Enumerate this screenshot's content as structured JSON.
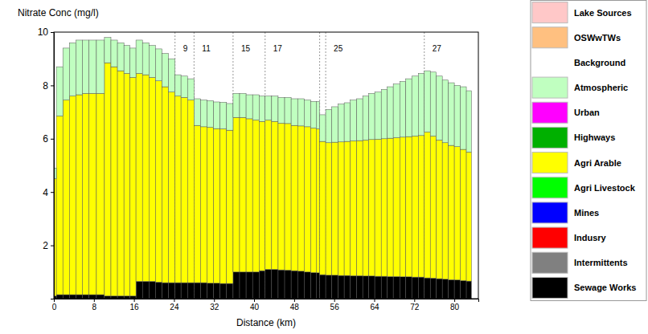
{
  "chart_data": {
    "type": "bar",
    "stacked": true,
    "legend": "right",
    "y_label": "Nitrate Conc (mg/l)",
    "x_label": "Distance (km)",
    "xlim": [
      0,
      84.8
    ],
    "xticks": [
      0,
      8,
      16,
      24,
      32,
      40,
      48,
      56,
      64,
      72,
      80
    ],
    "ylim": [
      0,
      10
    ],
    "yticks": [
      2,
      4,
      6,
      8,
      10
    ],
    "bins": [
      0,
      0.5,
      1.8,
      3.1,
      4.4,
      5.7,
      7.0,
      8.5,
      10.1,
      11.4,
      12.7,
      14.0,
      15.2,
      16.4,
      17.7,
      19.0,
      20.3,
      21.6,
      22.9,
      24.2,
      25.4,
      26.7,
      28.0,
      29.3,
      30.6,
      31.9,
      33.2,
      34.5,
      35.8,
      37.1,
      38.4,
      39.7,
      41.0,
      42.2,
      43.5,
      44.8,
      46.1,
      47.4,
      48.7,
      50.0,
      51.3,
      52.4,
      53.1,
      54.3,
      55.5,
      56.8,
      58.0,
      59.2,
      60.5,
      61.7,
      62.9,
      64.1,
      65.4,
      66.6,
      67.8,
      69.1,
      70.3,
      71.5,
      72.8,
      74.0,
      75.2,
      76.4,
      77.6,
      78.8,
      80.0,
      81.2,
      82.4,
      83.4
    ],
    "annotations": [
      {
        "x": 24.2,
        "label": "9"
      },
      {
        "x": 28.0,
        "label": "11"
      },
      {
        "x": 35.8,
        "label": "15"
      },
      {
        "x": 42.2,
        "label": "17"
      },
      {
        "x": 53.1
      },
      {
        "x": 54.3,
        "label": "25"
      },
      {
        "x": 74.0,
        "label": "27"
      }
    ],
    "series": [
      {
        "name": "Lake Sources",
        "color": "#ffc8c8",
        "values": [
          0,
          0,
          0,
          0,
          0,
          0,
          0,
          0,
          0,
          0,
          0,
          0,
          0,
          0,
          0,
          0,
          0,
          0,
          0,
          0,
          0,
          0,
          0,
          0,
          0,
          0,
          0,
          0,
          0,
          0,
          0,
          0,
          0,
          0,
          0,
          0,
          0,
          0,
          0,
          0,
          0,
          0,
          0,
          0,
          0,
          0,
          0,
          0,
          0,
          0,
          0,
          0,
          0,
          0,
          0,
          0,
          0,
          0,
          0,
          0,
          0,
          0,
          0,
          0,
          0,
          0,
          0
        ]
      },
      {
        "name": "OSWwTWs",
        "color": "#ffc080",
        "values": [
          0,
          0,
          0,
          0,
          0,
          0,
          0,
          0,
          0,
          0,
          0,
          0,
          0,
          0,
          0,
          0,
          0,
          0,
          0,
          0,
          0,
          0,
          0,
          0,
          0,
          0,
          0,
          0,
          0,
          0,
          0,
          0,
          0,
          0,
          0,
          0,
          0,
          0,
          0,
          0,
          0,
          0,
          0,
          0,
          0,
          0,
          0,
          0,
          0,
          0,
          0,
          0,
          0,
          0,
          0,
          0,
          0,
          0,
          0,
          0,
          0,
          0,
          0,
          0,
          0,
          0,
          0
        ]
      },
      {
        "name": "Background",
        "color": "#ffffff",
        "values": [
          0,
          0,
          0,
          0,
          0,
          0,
          0,
          0,
          0,
          0,
          0,
          0,
          0,
          0,
          0,
          0,
          0,
          0,
          0,
          0,
          0,
          0,
          0,
          0,
          0,
          0,
          0,
          0,
          0,
          0,
          0,
          0,
          0,
          0,
          0,
          0,
          0,
          0,
          0,
          0,
          0,
          0,
          0,
          0,
          0,
          0,
          0,
          0,
          0,
          0,
          0,
          0,
          0,
          0,
          0,
          0,
          0,
          0,
          0,
          0,
          0,
          0,
          0,
          0,
          0,
          0,
          0
        ]
      },
      {
        "name": "Atmospheric",
        "color": "#c0ffc0",
        "values": [
          0.4,
          1.85,
          1.95,
          2.0,
          2.05,
          2.0,
          2.0,
          2.0,
          0.95,
          1.0,
          1.05,
          1.05,
          1.1,
          1.25,
          1.2,
          1.2,
          1.2,
          1.25,
          1.25,
          0.8,
          0.8,
          0.8,
          1.0,
          1.0,
          1.0,
          1.0,
          1.0,
          1.0,
          0.9,
          0.9,
          0.9,
          0.95,
          0.95,
          0.9,
          0.95,
          0.97,
          0.98,
          1.0,
          1.02,
          1.0,
          1.0,
          1.03,
          1.0,
          1.25,
          1.33,
          1.42,
          1.45,
          1.53,
          1.57,
          1.65,
          1.73,
          1.77,
          1.85,
          1.93,
          2.01,
          2.09,
          2.17,
          2.25,
          2.33,
          2.3,
          2.4,
          2.4,
          2.35,
          2.35,
          2.3,
          2.35,
          2.3
        ]
      },
      {
        "name": "Urban",
        "color": "#ff00ff",
        "values": [
          0,
          0,
          0,
          0,
          0,
          0,
          0,
          0,
          0,
          0,
          0,
          0,
          0,
          0,
          0,
          0,
          0,
          0,
          0,
          0,
          0,
          0,
          0,
          0,
          0,
          0,
          0,
          0,
          0,
          0,
          0,
          0,
          0,
          0,
          0,
          0,
          0,
          0,
          0,
          0,
          0,
          0,
          0,
          0,
          0,
          0,
          0,
          0,
          0,
          0,
          0,
          0,
          0,
          0,
          0,
          0,
          0,
          0,
          0,
          0,
          0,
          0,
          0,
          0,
          0,
          0,
          0
        ]
      },
      {
        "name": "Highways",
        "color": "#00b000",
        "values": [
          0,
          0,
          0,
          0,
          0,
          0,
          0,
          0,
          0,
          0,
          0,
          0,
          0,
          0,
          0,
          0,
          0,
          0,
          0,
          0,
          0,
          0,
          0,
          0,
          0,
          0,
          0,
          0,
          0,
          0,
          0,
          0,
          0,
          0,
          0,
          0,
          0,
          0,
          0,
          0,
          0,
          0,
          0,
          0,
          0,
          0,
          0,
          0,
          0,
          0,
          0,
          0,
          0,
          0,
          0,
          0,
          0,
          0,
          0,
          0,
          0,
          0,
          0,
          0,
          0,
          0,
          0
        ]
      },
      {
        "name": "Agri Arable",
        "color": "#ffff00",
        "values": [
          4.4,
          6.7,
          7.3,
          7.45,
          7.5,
          7.55,
          7.55,
          7.55,
          8.75,
          8.6,
          8.45,
          8.35,
          8.2,
          7.8,
          7.75,
          7.65,
          7.55,
          7.35,
          7.15,
          7.0,
          6.95,
          6.85,
          5.9,
          5.85,
          5.85,
          5.8,
          5.8,
          5.75,
          5.8,
          5.8,
          5.75,
          5.7,
          5.6,
          5.6,
          5.55,
          5.5,
          5.5,
          5.45,
          5.45,
          5.45,
          5.42,
          5.4,
          5.0,
          4.97,
          4.99,
          5.01,
          5.03,
          5.06,
          5.07,
          5.1,
          5.12,
          5.14,
          5.16,
          5.19,
          5.21,
          5.24,
          5.26,
          5.29,
          5.31,
          5.47,
          5.33,
          5.2,
          5.12,
          5.04,
          5.0,
          4.92,
          4.84
        ]
      },
      {
        "name": "Agri Livestock",
        "color": "#00ff00",
        "values": [
          0,
          0,
          0,
          0,
          0,
          0,
          0,
          0,
          0,
          0,
          0,
          0,
          0,
          0,
          0,
          0,
          0,
          0,
          0,
          0,
          0,
          0,
          0,
          0,
          0,
          0,
          0,
          0,
          0,
          0,
          0,
          0,
          0,
          0,
          0,
          0,
          0,
          0,
          0,
          0,
          0,
          0,
          0,
          0,
          0,
          0,
          0,
          0,
          0,
          0,
          0,
          0,
          0,
          0,
          0,
          0,
          0,
          0,
          0,
          0,
          0,
          0,
          0,
          0,
          0,
          0,
          0
        ]
      },
      {
        "name": "Mines",
        "color": "#0000ff",
        "values": [
          0,
          0,
          0,
          0,
          0,
          0,
          0,
          0,
          0,
          0,
          0,
          0,
          0,
          0,
          0,
          0,
          0,
          0,
          0,
          0,
          0,
          0,
          0,
          0,
          0,
          0,
          0,
          0,
          0,
          0,
          0,
          0,
          0,
          0,
          0,
          0,
          0,
          0,
          0,
          0,
          0,
          0,
          0,
          0,
          0,
          0,
          0,
          0,
          0,
          0,
          0,
          0,
          0,
          0,
          0,
          0,
          0,
          0,
          0,
          0,
          0,
          0,
          0,
          0,
          0,
          0,
          0
        ]
      },
      {
        "name": "Indusry",
        "color": "#ff0000",
        "values": [
          0,
          0,
          0,
          0,
          0,
          0,
          0,
          0,
          0,
          0,
          0,
          0,
          0,
          0,
          0,
          0,
          0,
          0,
          0,
          0,
          0,
          0,
          0,
          0,
          0,
          0,
          0,
          0,
          0,
          0,
          0,
          0,
          0,
          0,
          0,
          0,
          0,
          0,
          0,
          0,
          0,
          0,
          0,
          0,
          0,
          0,
          0,
          0,
          0,
          0,
          0,
          0,
          0,
          0,
          0,
          0,
          0,
          0,
          0,
          0,
          0,
          0,
          0,
          0,
          0,
          0,
          0
        ]
      },
      {
        "name": "Intermittents",
        "color": "#808080",
        "values": [
          0,
          0,
          0,
          0,
          0,
          0,
          0,
          0,
          0,
          0,
          0,
          0,
          0,
          0,
          0,
          0,
          0,
          0,
          0,
          0,
          0,
          0,
          0,
          0,
          0,
          0,
          0,
          0,
          0,
          0,
          0,
          0,
          0,
          0,
          0,
          0,
          0,
          0,
          0,
          0,
          0,
          0,
          0,
          0,
          0,
          0,
          0,
          0,
          0,
          0,
          0,
          0,
          0,
          0,
          0,
          0,
          0,
          0,
          0,
          0,
          0,
          0,
          0,
          0,
          0,
          0,
          0
        ]
      },
      {
        "name": "Sewage Works",
        "color": "#000000",
        "values": [
          0.1,
          0.15,
          0.15,
          0.15,
          0.15,
          0.15,
          0.15,
          0.15,
          0.1,
          0.1,
          0.1,
          0.1,
          0.1,
          0.65,
          0.65,
          0.65,
          0.62,
          0.6,
          0.6,
          0.6,
          0.6,
          0.6,
          0.6,
          0.6,
          0.58,
          0.58,
          0.57,
          0.57,
          1.0,
          1.0,
          1.0,
          1.0,
          1.05,
          1.1,
          1.1,
          1.08,
          1.07,
          1.05,
          1.03,
          1.0,
          0.98,
          0.97,
          0.9,
          0.88,
          0.88,
          0.87,
          0.87,
          0.86,
          0.86,
          0.85,
          0.85,
          0.84,
          0.84,
          0.83,
          0.83,
          0.82,
          0.82,
          0.81,
          0.81,
          0.78,
          0.77,
          0.75,
          0.73,
          0.71,
          0.7,
          0.68,
          0.66
        ]
      }
    ]
  }
}
